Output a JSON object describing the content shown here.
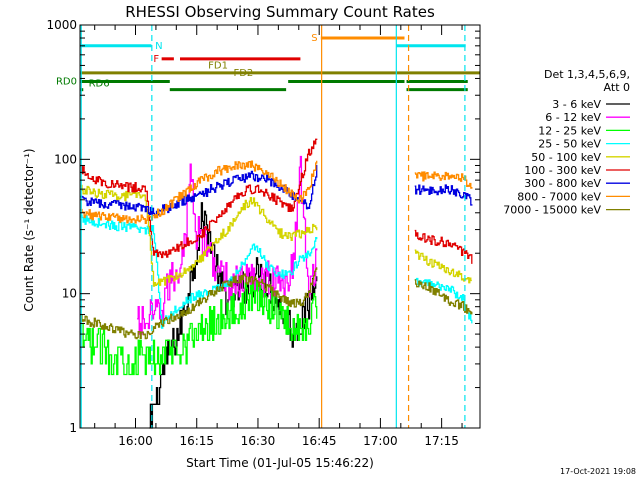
{
  "title": "RHESSI Observing Summary Count Rates",
  "xlabel": "Start Time (01-Jul-05 15:46:22)",
  "ylabel": "Count Rate (s⁻¹ detector⁻¹)",
  "timestamp": "17-Oct-2021 19:08",
  "legend_header": [
    "Det 1,3,4,5,6,9,",
    "Att 0"
  ],
  "chart_data": {
    "type": "line",
    "title": "RHESSI Observing Summary Count Rates",
    "xlabel": "Start Time (01-Jul-05 15:46:22)",
    "ylabel": "Count Rate (s⁻¹ detector⁻¹)",
    "x_unit": "minutes after 01-Jul-05 15:46:22",
    "xlim": [
      0,
      98
    ],
    "ylim": [
      1,
      1000
    ],
    "yscale": "log",
    "x_ticks": [
      {
        "label": "16:00",
        "x": 13.6
      },
      {
        "label": "16:15",
        "x": 28.6
      },
      {
        "label": "16:30",
        "x": 43.6
      },
      {
        "label": "16:45",
        "x": 58.6
      },
      {
        "label": "17:00",
        "x": 73.6
      },
      {
        "label": "17:15",
        "x": 88.6
      }
    ],
    "y_ticks": [
      {
        "label": "1",
        "y": 1
      },
      {
        "label": "10",
        "y": 10
      },
      {
        "label": "100",
        "y": 100
      },
      {
        "label": "1000",
        "y": 1000
      }
    ],
    "legend_position": "right",
    "grid": false,
    "flag_bars": [
      {
        "label": "N",
        "color": "#00e5ee",
        "y": 700,
        "segments": [
          [
            0,
            17.5
          ],
          [
            77.5,
            94.5
          ]
        ]
      },
      {
        "label": "S",
        "color": "#ff8c00",
        "y": 800,
        "segments": [
          [
            59,
            79.5
          ]
        ]
      },
      {
        "label": "F",
        "color": "#e00000",
        "y": 560,
        "segments": [
          [
            20,
            23
          ],
          [
            24.5,
            54
          ]
        ]
      },
      {
        "label": "FD1",
        "color": "",
        "y": 500,
        "segments": []
      },
      {
        "label": "FD2",
        "color": "#808000",
        "y": 440,
        "segments": [
          [
            0,
            98
          ]
        ]
      },
      {
        "label": "RD0",
        "color": "#007a00",
        "y": 380,
        "segments": [
          [
            0,
            22
          ],
          [
            51,
            79.5
          ],
          [
            80,
            95
          ]
        ]
      },
      {
        "label": "RD6",
        "color": "#007a00",
        "y": 330,
        "segments": [
          [
            0,
            0.8
          ],
          [
            22,
            50.5
          ],
          [
            80,
            95
          ]
        ]
      }
    ],
    "vertical_lines": [
      {
        "x": 0.3,
        "color": "#00e5ee",
        "style": "solid"
      },
      {
        "x": 17.6,
        "color": "#00e5ee",
        "style": "dashed"
      },
      {
        "x": 59.2,
        "color": "#ff8c00",
        "style": "solid"
      },
      {
        "x": 77.5,
        "color": "#00e5ee",
        "style": "solid"
      },
      {
        "x": 80.5,
        "color": "#ff8c00",
        "style": "dashed"
      },
      {
        "x": 94.3,
        "color": "#00e5ee",
        "style": "dashed"
      }
    ],
    "gap": [
      59,
      81
    ],
    "series": [
      {
        "name": "3 - 6 keV",
        "color": "#000000",
        "x": [
          17,
          19,
          21,
          22,
          24,
          26,
          28,
          30,
          32,
          34,
          36,
          38,
          40,
          42,
          44,
          46,
          48,
          50,
          52,
          54,
          56,
          58
        ],
        "y": [
          1,
          1.8,
          3,
          3.8,
          5,
          9,
          18,
          38,
          25,
          12,
          9,
          10,
          11,
          13,
          14,
          12,
          9,
          7,
          5.5,
          6,
          8,
          18
        ]
      },
      {
        "name": "6 - 12 keV",
        "color": "#ff00ff",
        "x": [
          14,
          16,
          18,
          20,
          22,
          24,
          26,
          27,
          28,
          30,
          32,
          34,
          36,
          38,
          40,
          42,
          44,
          46,
          48,
          50,
          52,
          54,
          55,
          56,
          58
        ],
        "y": [
          6,
          6.2,
          6.5,
          8,
          12,
          15,
          30,
          110,
          30,
          25,
          20,
          14,
          12,
          12,
          12,
          13,
          13,
          13,
          12,
          12,
          15,
          80,
          30,
          12,
          18
        ]
      },
      {
        "name": "12 - 25 keV",
        "color": "#00ff00",
        "x": [
          0,
          4,
          8,
          12,
          16,
          18,
          20,
          22,
          24,
          26,
          28,
          30,
          32,
          34,
          36,
          38,
          40,
          42,
          44,
          46,
          48,
          50,
          52,
          54,
          56,
          58
        ],
        "y": [
          4.5,
          4,
          3.6,
          3.3,
          3.2,
          3.3,
          3.5,
          3.8,
          4.2,
          4.4,
          5,
          5.5,
          6,
          6.5,
          7,
          7.5,
          8.5,
          9.5,
          9,
          8.5,
          7.5,
          6.5,
          5.5,
          5.5,
          6.5,
          8
        ]
      },
      {
        "name": "25 - 50 keV",
        "color": "#00ffff",
        "x": [
          0,
          4,
          8,
          12,
          16,
          18,
          20,
          22,
          24,
          26,
          28,
          30,
          32,
          34,
          36,
          38,
          40,
          42,
          44,
          46,
          48,
          50,
          52,
          54,
          56,
          58,
          82,
          86,
          90,
          94,
          96
        ],
        "y": [
          36,
          34,
          32,
          31,
          30,
          30,
          6,
          7,
          8,
          9,
          9.5,
          10,
          10.5,
          11,
          12,
          13.5,
          17,
          23,
          20,
          16,
          14,
          14,
          15,
          18,
          20,
          25,
          12,
          12,
          11,
          9,
          6
        ]
      },
      {
        "name": "50 - 100 keV",
        "color": "#d4d400",
        "x": [
          0,
          4,
          8,
          12,
          16,
          18,
          20,
          22,
          24,
          26,
          28,
          30,
          32,
          34,
          36,
          38,
          40,
          42,
          44,
          46,
          48,
          50,
          52,
          54,
          56,
          58,
          82,
          86,
          90,
          94,
          96
        ],
        "y": [
          60,
          56,
          54,
          53,
          53,
          12,
          12,
          13,
          14,
          15,
          17,
          19,
          22,
          26,
          30,
          35,
          45,
          50,
          42,
          35,
          30,
          27,
          27,
          28,
          30,
          32,
          20,
          17,
          15,
          13,
          12
        ]
      },
      {
        "name": "100 - 300 keV",
        "color": "#e00000",
        "x": [
          0,
          4,
          8,
          12,
          16,
          18,
          20,
          22,
          24,
          26,
          28,
          30,
          32,
          34,
          36,
          38,
          40,
          42,
          44,
          46,
          48,
          50,
          52,
          54,
          56,
          58,
          82,
          86,
          90,
          94,
          96
        ],
        "y": [
          85,
          70,
          65,
          62,
          62,
          20,
          19,
          20,
          22,
          24,
          26,
          28,
          33,
          38,
          45,
          52,
          58,
          60,
          60,
          55,
          50,
          45,
          42,
          70,
          110,
          140,
          28,
          25,
          24,
          20,
          18
        ]
      },
      {
        "name": "300 - 800 keV",
        "color": "#0000e0",
        "x": [
          0,
          4,
          8,
          12,
          16,
          18,
          20,
          22,
          24,
          26,
          28,
          30,
          32,
          34,
          36,
          38,
          40,
          42,
          44,
          46,
          48,
          50,
          52,
          54,
          56,
          58,
          82,
          86,
          90,
          94,
          96
        ],
        "y": [
          50,
          47,
          46,
          45,
          44,
          40,
          42,
          44,
          47,
          50,
          52,
          55,
          60,
          63,
          66,
          70,
          73,
          75,
          72,
          70,
          65,
          60,
          54,
          48,
          45,
          85,
          60,
          58,
          60,
          55,
          48
        ]
      },
      {
        "name": "800 - 7000 keV",
        "color": "#ff8c00",
        "x": [
          0,
          4,
          8,
          12,
          16,
          18,
          20,
          22,
          24,
          26,
          28,
          30,
          32,
          34,
          36,
          38,
          40,
          42,
          44,
          46,
          48,
          50,
          52,
          54,
          56,
          58,
          82,
          86,
          90,
          94,
          96
        ],
        "y": [
          40,
          38,
          37,
          36,
          36,
          38,
          41,
          46,
          52,
          58,
          64,
          70,
          76,
          82,
          86,
          90,
          92,
          90,
          85,
          78,
          70,
          62,
          55,
          50,
          60,
          100,
          75,
          74,
          75,
          72,
          62
        ]
      },
      {
        "name": "7000 - 15000 keV",
        "color": "#808000",
        "x": [
          0,
          4,
          8,
          12,
          16,
          18,
          20,
          22,
          24,
          26,
          28,
          30,
          32,
          34,
          36,
          38,
          40,
          42,
          44,
          46,
          48,
          50,
          52,
          54,
          56,
          58,
          82,
          86,
          90,
          94,
          96
        ],
        "y": [
          6.5,
          6,
          5.5,
          5,
          5,
          5.5,
          6,
          6.5,
          7,
          7.5,
          8,
          9,
          10,
          11,
          12,
          12.5,
          13,
          12.5,
          12,
          11,
          10,
          9,
          8.5,
          8.5,
          10,
          15,
          12,
          11,
          9,
          8,
          7
        ]
      }
    ]
  }
}
